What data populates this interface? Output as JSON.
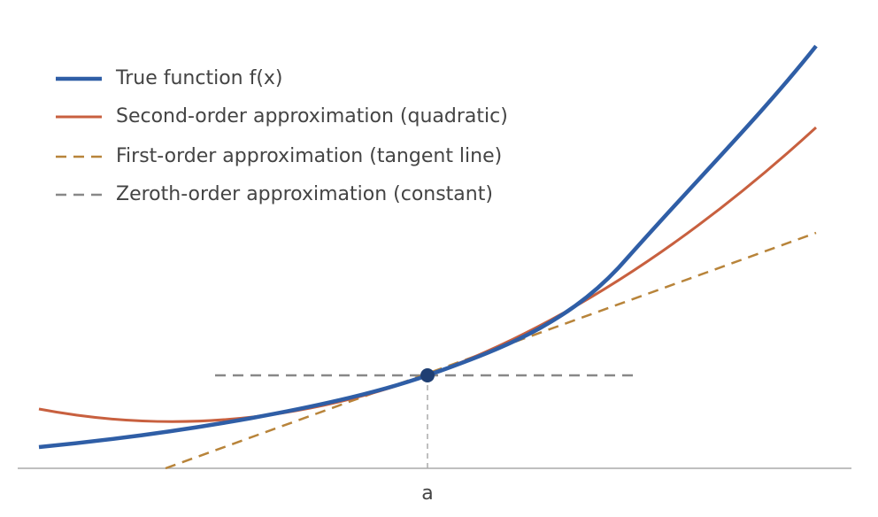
{
  "legend": {
    "items": [
      {
        "label": "True function f(x)"
      },
      {
        "label": "Second-order approximation (quadratic)"
      },
      {
        "label": "First-order approximation (tangent line)"
      },
      {
        "label": "Zeroth-order approximation (constant)"
      }
    ]
  },
  "axis": {
    "point_label": "a"
  }
}
